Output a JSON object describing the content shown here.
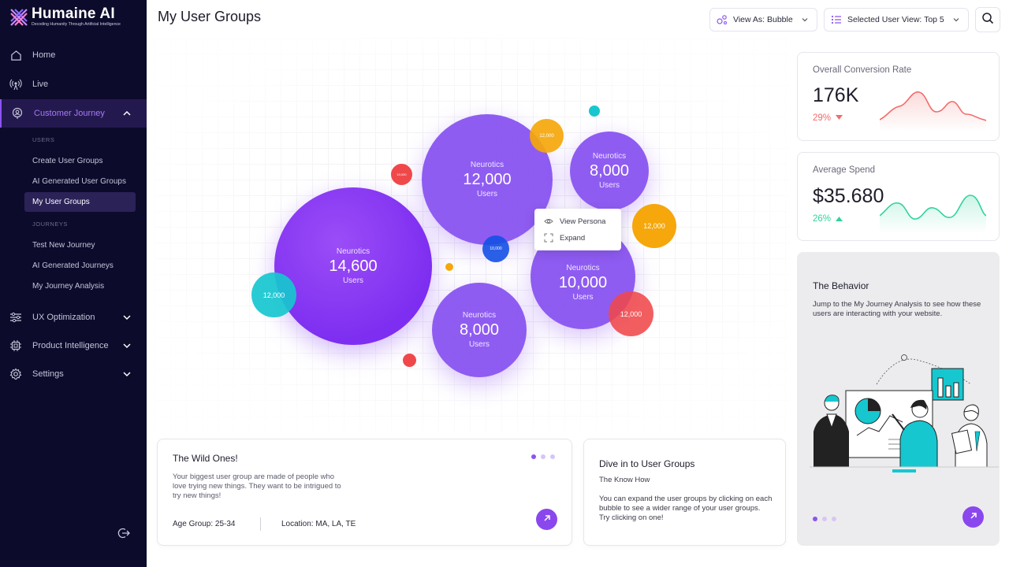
{
  "brand": {
    "name": "Humaine AI",
    "tagline": "Decoding Humanity Through Artificial Intelligence"
  },
  "sidebar": {
    "nav": [
      {
        "label": "Home",
        "icon": "home-icon"
      },
      {
        "label": "Live",
        "icon": "broadcast-icon"
      },
      {
        "label": "Customer Journey",
        "icon": "user-pin-icon",
        "expanded": true
      },
      {
        "label": "UX Optimization",
        "icon": "sliders-icon"
      },
      {
        "label": "Product Intelligence",
        "icon": "chip-icon"
      },
      {
        "label": "Settings",
        "icon": "gear-icon"
      }
    ],
    "sections": {
      "users": "USERS",
      "journeys": "JOURNEYS"
    },
    "users_items": [
      "Create User Groups",
      "AI Generated User Groups",
      "My User Groups"
    ],
    "journeys_items": [
      "Test New Journey",
      "AI Generated Journeys",
      "My Journey Analysis"
    ],
    "active_item": "My User Groups"
  },
  "header": {
    "title": "My User Groups",
    "view_as": "View As: Bubble",
    "selected_view": "Selected User View: Top 5"
  },
  "bubbles": [
    {
      "name": "Neurotics",
      "value": "14,600",
      "unit": "Users"
    },
    {
      "name": "Neurotics",
      "value": "12,000",
      "unit": "Users"
    },
    {
      "name": "Neurotics",
      "value": "8,000",
      "unit": "Users"
    },
    {
      "name": "Neurotics",
      "value": "10,000",
      "unit": "Users"
    },
    {
      "name": "Neurotics",
      "value": "8,000",
      "unit": "Users"
    }
  ],
  "small_bubbles": {
    "orange_top": "12,000",
    "orange_right": "12,000",
    "teal_left": "12,000",
    "red_right": "12,000",
    "blue_center": "10,000",
    "red_small": "10,000"
  },
  "popup": {
    "view_persona": "View Persona",
    "expand": "Expand"
  },
  "wild_card": {
    "title": "The Wild Ones!",
    "body": "Your biggest user group are made of people who love trying new things. They want to be intrigued to try new things!",
    "age": "Age Group: 25-34",
    "location": "Location: MA, LA, TE"
  },
  "dive_card": {
    "title": "Dive in to User Groups",
    "subtitle": "The Know How",
    "body": "You can expand the user groups by clicking on each bubble to see a wider range of your user groups. Try clicking on one!"
  },
  "stats": {
    "conversion": {
      "label": "Overall Conversion Rate",
      "value": "176K",
      "change": "29%",
      "trend": "down",
      "color": "#f26b6b"
    },
    "spend": {
      "label": "Average Spend",
      "value": "$35.680",
      "change": "26%",
      "trend": "up",
      "color": "#2fd39a"
    }
  },
  "behavior": {
    "title": "The Behavior",
    "text": "Jump to the My Journey Analysis to see how these users are interacting with your website."
  },
  "colors": {
    "accent": "#8b54f1",
    "sidebar": "#0c0b2b",
    "teal": "#16c7cf",
    "orange": "#f5a70b",
    "red": "#f0484a"
  }
}
